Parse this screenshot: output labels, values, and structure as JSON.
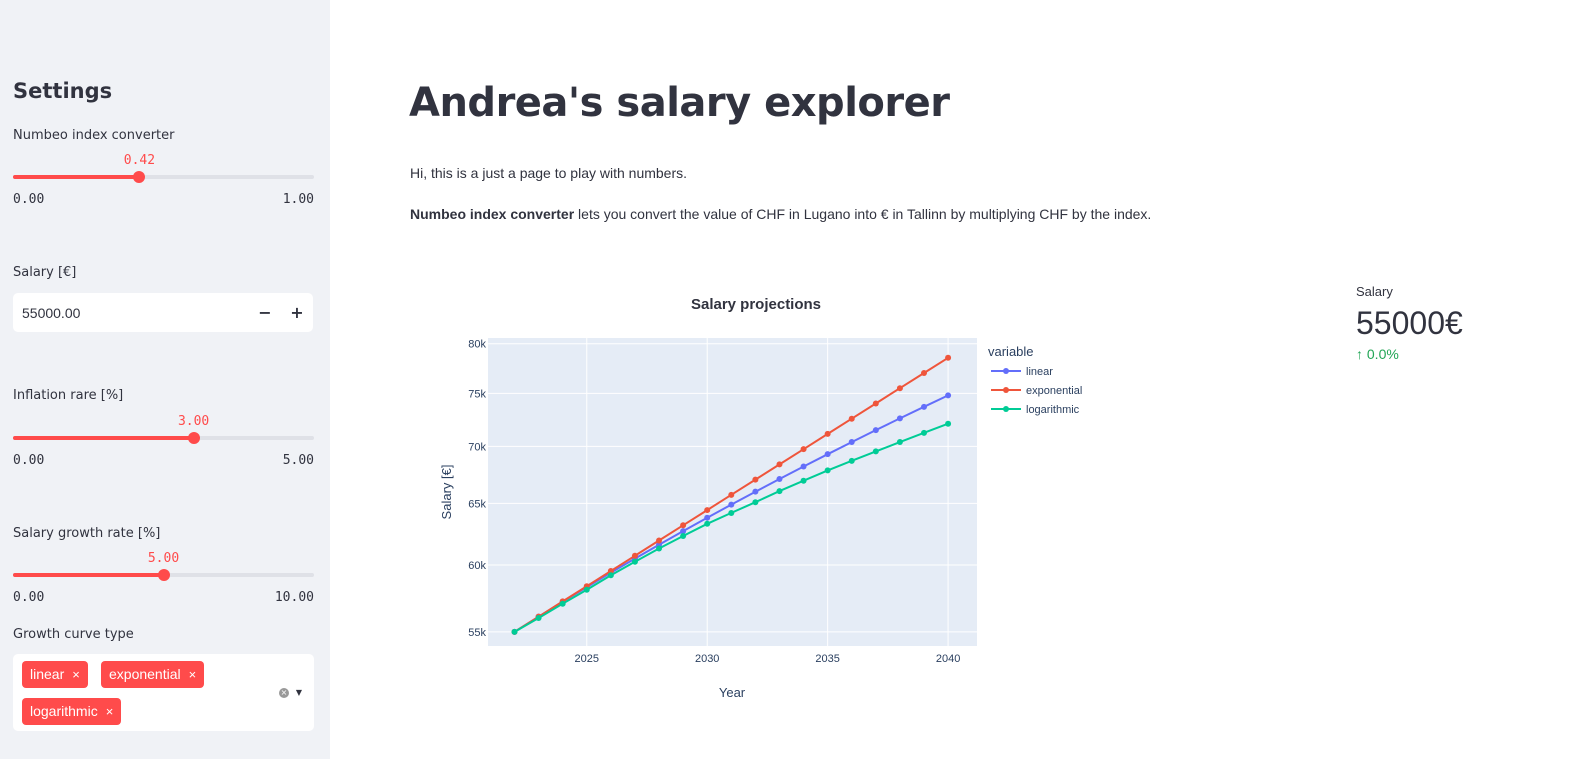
{
  "sidebar": {
    "title": "Settings",
    "numbeo": {
      "label": "Numbeo index converter",
      "value": "0.42",
      "min": "0.00",
      "max": "1.00",
      "fraction": 0.42
    },
    "salary": {
      "label": "Salary [€]",
      "value": "55000.00",
      "minus": "−",
      "plus": "+"
    },
    "inflation": {
      "label": "Inflation rare [%]",
      "value": "3.00",
      "min": "0.00",
      "max": "5.00",
      "fraction": 0.6
    },
    "growth": {
      "label": "Salary growth rate [%]",
      "value": "5.00",
      "min": "0.00",
      "max": "10.00",
      "fraction": 0.5
    },
    "curve": {
      "label": "Growth curve type",
      "tags": [
        "linear",
        "exponential",
        "logarithmic"
      ],
      "remove": "×"
    }
  },
  "main": {
    "title": "Andrea's salary explorer",
    "intro": "Hi, this is a just a page to play with numbers.",
    "desc_bold": "Numbeo index converter",
    "desc_rest": " lets you convert the value of CHF in Lugano into € in Tallinn by multiplying CHF by the index."
  },
  "metric": {
    "label": "Salary",
    "value": "55000€",
    "delta": "0.0%",
    "delta_color": "#21a555"
  },
  "colors": {
    "accent": "#ff4b4b",
    "sidebar_bg": "#f0f2f6",
    "plot_bg": "#e5ecf6"
  },
  "chart_data": {
    "type": "line",
    "title": "Salary projections",
    "xlabel": "Year",
    "ylabel": "Salary [€]",
    "legend_title": "variable",
    "legend_position": "right",
    "x": [
      2022,
      2023,
      2024,
      2025,
      2026,
      2027,
      2028,
      2029,
      2030,
      2031,
      2032,
      2033,
      2034,
      2035,
      2036,
      2037,
      2038,
      2039,
      2040
    ],
    "xticks": [
      2025,
      2030,
      2035,
      2040
    ],
    "yticks": [
      55000,
      60000,
      65000,
      70000,
      75000,
      80000
    ],
    "ytick_labels": [
      "55k",
      "60k",
      "65k",
      "70k",
      "75k",
      "80k"
    ],
    "xlim": [
      2020.9,
      2041.2
    ],
    "ylim": [
      54000,
      80600
    ],
    "yscale": "log",
    "grid": true,
    "series": [
      {
        "name": "linear",
        "color": "#636efa",
        "values": [
          55000,
          56100,
          57200,
          58300,
          59400,
          60500,
          61600,
          62700,
          63800,
          64900,
          66000,
          67100,
          68200,
          69300,
          70400,
          71500,
          72600,
          73700,
          74800
        ]
      },
      {
        "name": "exponential",
        "color": "#ef553b",
        "values": [
          55000,
          56100,
          57222,
          58366,
          59534,
          60724,
          61939,
          63178,
          64441,
          65730,
          67045,
          68386,
          69753,
          71148,
          72571,
          74023,
          75503,
          77013,
          78553
        ]
      },
      {
        "name": "logarithmic",
        "color": "#00cc96",
        "values": [
          55000,
          56000,
          57050,
          58100,
          59200,
          60250,
          61300,
          62300,
          63300,
          64200,
          65100,
          66050,
          66950,
          67850,
          68700,
          69550,
          70400,
          71250,
          72100
        ]
      }
    ]
  }
}
